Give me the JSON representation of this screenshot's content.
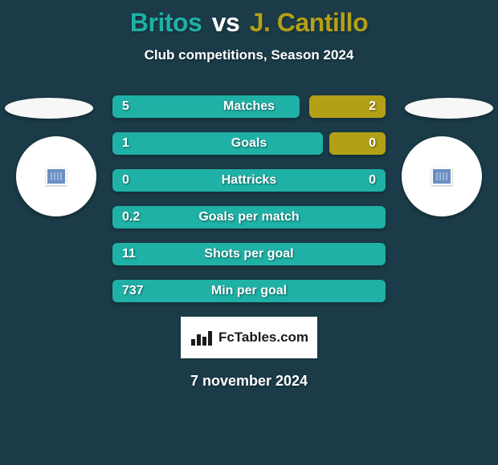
{
  "colors": {
    "bg": "#1a3b47",
    "player1": "#1fb1a6",
    "player2": "#b4a017",
    "text_light": "#ffffff",
    "brand_bg": "#ffffff",
    "ellipse": "#f7f7f7"
  },
  "title": {
    "player1_name": "Britos",
    "vs": "vs",
    "player2_name": "J. Cantillo",
    "fontsize": 32
  },
  "subtitle": {
    "text": "Club competitions, Season 2024",
    "fontsize": 17
  },
  "stats": {
    "row_width": 340,
    "rows": [
      {
        "label": "Matches",
        "left_val": "5",
        "right_val": "2",
        "left_w": 233,
        "right_w": 95
      },
      {
        "label": "Goals",
        "left_val": "1",
        "right_val": "0",
        "left_w": 262,
        "right_w": 70
      },
      {
        "label": "Hattricks",
        "left_val": "0",
        "right_val": "0",
        "left_w": 340,
        "right_w": 0
      },
      {
        "label": "Goals per match",
        "left_val": "0.2",
        "right_val": "",
        "left_w": 340,
        "right_w": 0
      },
      {
        "label": "Shots per goal",
        "left_val": "11",
        "right_val": "",
        "left_w": 340,
        "right_w": 0
      },
      {
        "label": "Min per goal",
        "left_val": "737",
        "right_val": "",
        "left_w": 340,
        "right_w": 0
      }
    ]
  },
  "brand": {
    "text": "FcTables.com"
  },
  "date": {
    "text": "7 november 2024"
  }
}
